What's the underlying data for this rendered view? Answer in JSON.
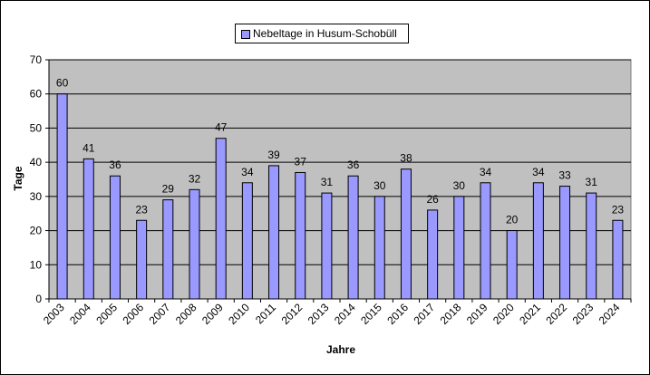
{
  "chart_data": {
    "type": "bar",
    "categories": [
      "2003",
      "2004",
      "2005",
      "2006",
      "2007",
      "2008",
      "2009",
      "2010",
      "2011",
      "2012",
      "2013",
      "2014",
      "2015",
      "2016",
      "2017",
      "2018",
      "2019",
      "2020",
      "2021",
      "2022",
      "2023",
      "2024"
    ],
    "series": [
      {
        "name": "Nebeltage in Husum-Schobüll",
        "values": [
          60,
          41,
          36,
          23,
          29,
          32,
          47,
          34,
          39,
          37,
          31,
          36,
          30,
          38,
          26,
          30,
          34,
          20,
          34,
          33,
          31,
          23
        ]
      }
    ],
    "title": "",
    "xlabel": "Jahre",
    "ylabel": "Tage",
    "ylim": [
      0,
      70
    ],
    "yticks": [
      0,
      10,
      20,
      30,
      40,
      50,
      60,
      70
    ],
    "grid": true,
    "legend_position": "top-center",
    "data_labels": true,
    "colors": {
      "bar_fill": "#9999ff",
      "bar_stroke": "#000000",
      "plot_background": "#c0c0c0",
      "gridline": "#000000"
    }
  }
}
